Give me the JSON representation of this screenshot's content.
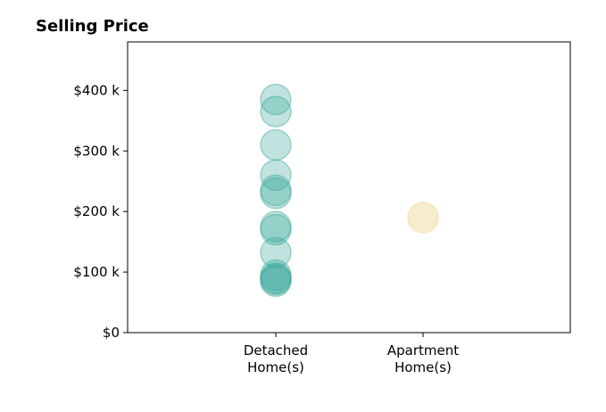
{
  "chart_data": {
    "type": "scatter",
    "title": "Selling Price",
    "xlabel": "",
    "ylabel": "",
    "categories": [
      "Detached\nHome(s)",
      "Apartment\nHome(s)"
    ],
    "ylim": [
      0,
      480000
    ],
    "yticks": [
      0,
      100000,
      200000,
      300000,
      400000
    ],
    "ytick_labels": [
      "$0",
      "$100 k",
      "$200 k",
      "$300 k",
      "$400 k"
    ],
    "grid": false,
    "legend": "none",
    "series": [
      {
        "category": "Detached\nHome(s)",
        "color": "#3aa89a",
        "values": [
          385000,
          365000,
          310000,
          260000,
          235000,
          230000,
          175000,
          170000,
          132000,
          95000,
          90000,
          88000,
          85000
        ]
      },
      {
        "category": "Apartment\nHome(s)",
        "color": "#f3dfae",
        "values": [
          190000
        ]
      }
    ]
  }
}
